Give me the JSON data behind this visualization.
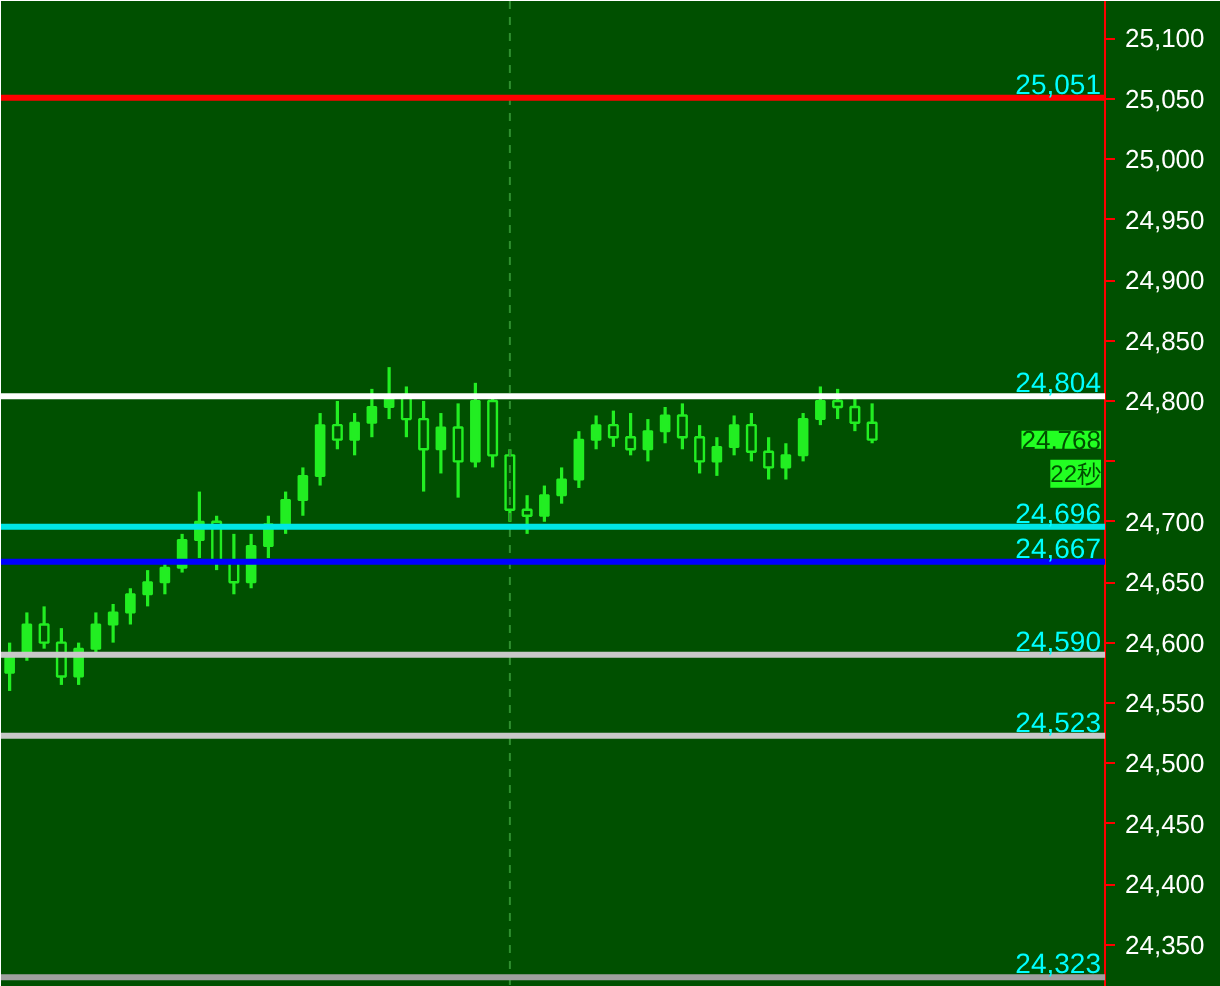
{
  "chart_data": {
    "type": "candlestick",
    "categories": [
      null,
      null,
      null,
      null,
      null,
      null,
      null,
      null,
      null,
      null,
      null,
      null,
      null,
      null,
      null,
      null,
      null,
      null,
      null,
      null,
      null,
      null,
      null,
      null,
      null,
      null,
      null,
      null,
      null,
      null,
      null,
      null,
      null,
      null,
      null,
      null,
      null,
      null,
      null,
      null,
      null,
      null,
      null,
      null,
      null,
      null,
      null,
      null,
      null,
      null,
      null,
      null,
      null,
      null,
      null,
      null,
      null,
      null,
      null,
      null,
      null,
      null,
      null,
      null
    ],
    "ohlc": [
      [
        24575,
        24600,
        24560,
        24590
      ],
      [
        24590,
        24625,
        24585,
        24615
      ],
      [
        24615,
        24630,
        24595,
        24600
      ],
      [
        24600,
        24612,
        24565,
        24572
      ],
      [
        24572,
        24600,
        24565,
        24595
      ],
      [
        24595,
        24625,
        24590,
        24615
      ],
      [
        24615,
        24632,
        24600,
        24625
      ],
      [
        24625,
        24645,
        24615,
        24640
      ],
      [
        24640,
        24660,
        24630,
        24650
      ],
      [
        24650,
        24668,
        24640,
        24662
      ],
      [
        24662,
        24690,
        24658,
        24685
      ],
      [
        24685,
        24725,
        24670,
        24700
      ],
      [
        24700,
        24705,
        24660,
        24668
      ],
      [
        24668,
        24690,
        24640,
        24650
      ],
      [
        24650,
        24690,
        24645,
        24680
      ],
      [
        24680,
        24705,
        24670,
        24698
      ],
      [
        24698,
        24725,
        24690,
        24718
      ],
      [
        24718,
        24745,
        24705,
        24738
      ],
      [
        24738,
        24790,
        24730,
        24780
      ],
      [
        24780,
        24800,
        24760,
        24768
      ],
      [
        24768,
        24790,
        24755,
        24782
      ],
      [
        24782,
        24810,
        24770,
        24795
      ],
      [
        24795,
        24828,
        24785,
        24805
      ],
      [
        24805,
        24812,
        24770,
        24785
      ],
      [
        24785,
        24800,
        24725,
        24760
      ],
      [
        24760,
        24790,
        24740,
        24778
      ],
      [
        24778,
        24798,
        24720,
        24750
      ],
      [
        24750,
        24815,
        24745,
        24800
      ],
      [
        24800,
        24805,
        24745,
        24755
      ],
      [
        24755,
        24760,
        24700,
        24710
      ],
      [
        24710,
        24722,
        24690,
        24705
      ],
      [
        24705,
        24730,
        24700,
        24722
      ],
      [
        24722,
        24745,
        24715,
        24735
      ],
      [
        24735,
        24775,
        24728,
        24768
      ],
      [
        24768,
        24788,
        24760,
        24780
      ],
      [
        24780,
        24792,
        24762,
        24770
      ],
      [
        24770,
        24790,
        24755,
        24760
      ],
      [
        24760,
        24785,
        24750,
        24775
      ],
      [
        24775,
        24795,
        24765,
        24788
      ],
      [
        24788,
        24798,
        24760,
        24770
      ],
      [
        24770,
        24780,
        24740,
        24750
      ],
      [
        24750,
        24770,
        24738,
        24762
      ],
      [
        24762,
        24788,
        24755,
        24780
      ],
      [
        24780,
        24790,
        24750,
        24758
      ],
      [
        24758,
        24770,
        24735,
        24745
      ],
      [
        24745,
        24765,
        24735,
        24755
      ],
      [
        24755,
        24790,
        24750,
        24785
      ],
      [
        24785,
        24812,
        24780,
        24800
      ],
      [
        24800,
        24810,
        24785,
        24795
      ],
      [
        24795,
        24802,
        24775,
        24782
      ],
      [
        24782,
        24798,
        24765,
        24768
      ],
      null,
      null,
      null,
      null,
      null,
      null,
      null,
      null,
      null,
      null,
      null,
      null,
      null
    ],
    "color": "#22ee22",
    "ylim": [
      24315,
      25131
    ],
    "yticks": [
      {
        "value": 24350,
        "label": "24,350"
      },
      {
        "value": 24400,
        "label": "24,400"
      },
      {
        "value": 24450,
        "label": "24,450"
      },
      {
        "value": 24500,
        "label": "24,500"
      },
      {
        "value": 24550,
        "label": "24,550"
      },
      {
        "value": 24600,
        "label": "24,600"
      },
      {
        "value": 24650,
        "label": "24,650"
      },
      {
        "value": 24700,
        "label": "24,700"
      },
      {
        "value": 24750,
        "label": null
      },
      {
        "value": 24800,
        "label": "24,800"
      },
      {
        "value": 24850,
        "label": "24,850"
      },
      {
        "value": 24900,
        "label": "24,900"
      },
      {
        "value": 24950,
        "label": "24,950"
      },
      {
        "value": 25000,
        "label": "25,000"
      },
      {
        "value": 25050,
        "label": "25,050"
      },
      {
        "value": 25100,
        "label": "25,100"
      }
    ],
    "tick_labels": "y",
    "ref_lines": [
      {
        "axis": "y",
        "value": 25051,
        "label": "25,051",
        "color": "#ff0000"
      },
      {
        "axis": "y",
        "value": 24804,
        "label": "24,804",
        "color": "#ffffff"
      },
      {
        "axis": "y",
        "value": 24696,
        "label": "24,696",
        "color": "#00e5e5"
      },
      {
        "axis": "y",
        "value": 24667,
        "label": "24,667",
        "color": "#0000ff"
      },
      {
        "axis": "y",
        "value": 24590,
        "label": "24,590",
        "color": "#c8c8c8"
      },
      {
        "axis": "y",
        "value": 24523,
        "label": "24,523",
        "color": "#c8c8c8"
      },
      {
        "axis": "y",
        "value": 24323,
        "label": "24,323",
        "color": "#a0a0a0"
      }
    ],
    "annotations": [
      "24,768",
      "22秒"
    ]
  }
}
